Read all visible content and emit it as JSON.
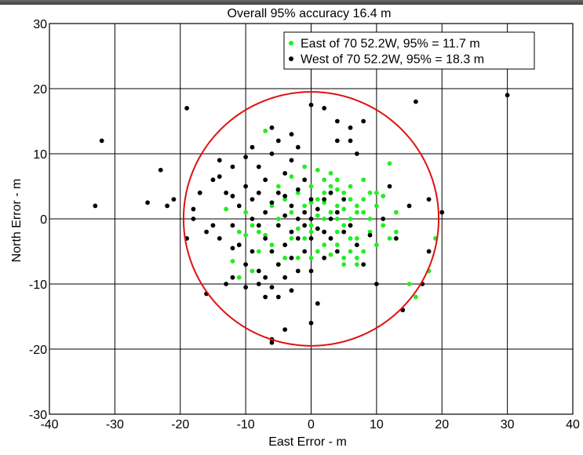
{
  "chart_data": {
    "type": "scatter",
    "title": "Overall 95% accuracy 16.4 m",
    "xlabel": "East Error - m",
    "ylabel": "North Error - m",
    "xlim": [
      -40,
      40
    ],
    "ylim": [
      -30,
      30
    ],
    "grid": true,
    "legend_position": "top-right",
    "x_ticks": [
      {
        "value": -40,
        "label": "-40",
        "color": "#000000"
      },
      {
        "value": -30,
        "label": "-30",
        "color": "#f7f720"
      },
      {
        "value": -20,
        "label": "-20",
        "color": "#000000"
      },
      {
        "value": -10,
        "label": "-10",
        "color": "#000000"
      },
      {
        "value": 0,
        "label": "0",
        "color": "#000000"
      },
      {
        "value": 10,
        "label": "10",
        "color": "#f7f720"
      },
      {
        "value": 20,
        "label": "20",
        "color": "#000000"
      },
      {
        "value": 30,
        "label": "30",
        "color": "#f7f720"
      },
      {
        "value": 40,
        "label": "40",
        "color": "#000000"
      }
    ],
    "y_ticks": [
      {
        "value": 30,
        "label": "30",
        "color": "#000000"
      },
      {
        "value": 20,
        "label": "20",
        "color": "#f7f720"
      },
      {
        "value": 10,
        "label": "10",
        "color": "#f7f720"
      },
      {
        "value": 0,
        "label": "0",
        "color": "#000000"
      },
      {
        "value": -10,
        "label": "-10",
        "color": "#000000"
      },
      {
        "value": -20,
        "label": "-20",
        "color": "#f7f720"
      },
      {
        "value": -30,
        "label": "-30",
        "color": "#000000"
      }
    ],
    "circle": {
      "center": [
        0,
        0
      ],
      "radius": 19.5,
      "color": "#e01010"
    },
    "series": [
      {
        "name": "East of 70 52.2W, 95% = 11.7 m",
        "color": "#22ee22",
        "points": [
          [
            -7,
            13.5
          ],
          [
            1,
            7.5
          ],
          [
            -13,
            1.5
          ],
          [
            -11,
            -2
          ],
          [
            -10,
            -2.5
          ],
          [
            -12,
            -6.5
          ],
          [
            -11,
            -9
          ],
          [
            -9,
            -8
          ],
          [
            -6,
            -4
          ],
          [
            -8,
            -2
          ],
          [
            -5,
            -7
          ],
          [
            -4,
            -6
          ],
          [
            -3,
            -3
          ],
          [
            -2,
            -1.5
          ],
          [
            -1,
            2
          ],
          [
            0,
            -1
          ],
          [
            1,
            0.5
          ],
          [
            2,
            2.5
          ],
          [
            3,
            5
          ],
          [
            4,
            6
          ],
          [
            5,
            4
          ],
          [
            6,
            3
          ],
          [
            7,
            2
          ],
          [
            8,
            1
          ],
          [
            9,
            0
          ],
          [
            10,
            4
          ],
          [
            11,
            -1
          ],
          [
            12,
            8.5
          ],
          [
            13,
            -2
          ],
          [
            15,
            -10
          ],
          [
            16,
            -12
          ],
          [
            18,
            -8
          ],
          [
            19,
            -3
          ],
          [
            2,
            -4
          ],
          [
            3,
            -3
          ],
          [
            4,
            -2
          ],
          [
            5,
            -1
          ],
          [
            6,
            0
          ],
          [
            7,
            -3
          ],
          [
            8,
            -5
          ],
          [
            5,
            -6
          ],
          [
            6,
            -5
          ],
          [
            3,
            7
          ],
          [
            4,
            4.5
          ],
          [
            2,
            6
          ],
          [
            -2,
            4
          ],
          [
            0,
            5
          ],
          [
            1,
            3
          ],
          [
            -3,
            1
          ],
          [
            -1,
            -3
          ],
          [
            3,
            1
          ],
          [
            4,
            0
          ],
          [
            5,
            1.5
          ],
          [
            6,
            -1
          ],
          [
            7,
            1
          ],
          [
            8,
            3
          ],
          [
            9,
            -2
          ],
          [
            10,
            -4
          ],
          [
            0,
            -2
          ],
          [
            2,
            0
          ],
          [
            4,
            -4
          ],
          [
            6,
            -3
          ],
          [
            7,
            -6
          ],
          [
            -4,
            3
          ],
          [
            -5,
            0
          ],
          [
            -6,
            2
          ],
          [
            -7,
            -2.5
          ],
          [
            -8,
            -5
          ],
          [
            -9,
            -1
          ],
          [
            -10,
            1
          ],
          [
            1,
            -5
          ],
          [
            3,
            -5.5
          ],
          [
            5,
            -7
          ],
          [
            7,
            -7
          ],
          [
            9,
            4
          ],
          [
            10,
            2
          ],
          [
            11,
            3.5
          ],
          [
            12,
            -3
          ],
          [
            13,
            1
          ],
          [
            -2,
            -6
          ],
          [
            0,
            2.5
          ],
          [
            2,
            4
          ],
          [
            4,
            2
          ],
          [
            6,
            5
          ],
          [
            8,
            6
          ],
          [
            -5,
            5
          ],
          [
            -3,
            6.5
          ],
          [
            -1,
            8
          ],
          [
            0,
            -6
          ],
          [
            2,
            -2
          ]
        ]
      },
      {
        "name": "West of 70 52.2W, 95% = 18.3 m",
        "color": "#000000",
        "points": [
          [
            -33,
            2
          ],
          [
            -32,
            12
          ],
          [
            -25,
            2.5
          ],
          [
            -23,
            7.5
          ],
          [
            -22,
            2
          ],
          [
            -21,
            3
          ],
          [
            -19,
            -3
          ],
          [
            -19,
            17
          ],
          [
            -18,
            0
          ],
          [
            -18,
            1.5
          ],
          [
            -17,
            4
          ],
          [
            -16,
            -2
          ],
          [
            -16,
            -11.5
          ],
          [
            -15,
            6
          ],
          [
            -14,
            9
          ],
          [
            -13,
            4
          ],
          [
            -13,
            -10
          ],
          [
            -12,
            -1
          ],
          [
            -12,
            -4.5
          ],
          [
            -12,
            3.5
          ],
          [
            -11,
            -4
          ],
          [
            -11,
            2
          ],
          [
            -10,
            5
          ],
          [
            -10,
            -7
          ],
          [
            -10,
            9.5
          ],
          [
            -9,
            -5
          ],
          [
            -9,
            0
          ],
          [
            -9,
            3
          ],
          [
            -8,
            8
          ],
          [
            -8,
            -8
          ],
          [
            -8,
            -1
          ],
          [
            -8,
            4
          ],
          [
            -7,
            6
          ],
          [
            -7,
            -3
          ],
          [
            -7,
            -9
          ],
          [
            -7,
            1
          ],
          [
            -6,
            -5
          ],
          [
            -6,
            2.5
          ],
          [
            -6,
            -10.5
          ],
          [
            -6,
            10
          ],
          [
            -5,
            -1
          ],
          [
            -5,
            4
          ],
          [
            -5,
            -7
          ],
          [
            -5,
            12
          ],
          [
            -4,
            0.5
          ],
          [
            -4,
            -4
          ],
          [
            -4,
            7
          ],
          [
            -4,
            -17
          ],
          [
            -3,
            2
          ],
          [
            -3,
            -2
          ],
          [
            -3,
            -6
          ],
          [
            -3,
            9
          ],
          [
            -2,
            0
          ],
          [
            -2,
            -3
          ],
          [
            -2,
            4.5
          ],
          [
            -2,
            -8
          ],
          [
            -1,
            1
          ],
          [
            -1,
            -1
          ],
          [
            -1,
            6
          ],
          [
            -1,
            -5
          ],
          [
            0,
            0
          ],
          [
            0,
            3
          ],
          [
            0,
            -3
          ],
          [
            0,
            17.5
          ],
          [
            0,
            -8
          ],
          [
            1,
            1.5
          ],
          [
            1,
            -1.5
          ],
          [
            1,
            -13
          ],
          [
            2,
            3
          ],
          [
            2,
            -2
          ],
          [
            2,
            -6
          ],
          [
            3,
            0
          ],
          [
            3,
            4
          ],
          [
            3,
            -3
          ],
          [
            4,
            1
          ],
          [
            4,
            -5
          ],
          [
            4,
            12
          ],
          [
            5,
            -2
          ],
          [
            5,
            3
          ],
          [
            6,
            14
          ],
          [
            6,
            -1
          ],
          [
            7,
            -4
          ],
          [
            7,
            10
          ],
          [
            8,
            15
          ],
          [
            8,
            -7
          ],
          [
            9,
            -2.5
          ],
          [
            10,
            -10
          ],
          [
            11,
            0
          ],
          [
            12,
            5
          ],
          [
            13,
            -3
          ],
          [
            14,
            -14
          ],
          [
            15,
            2
          ],
          [
            16,
            18
          ],
          [
            17,
            -10
          ],
          [
            18,
            3
          ],
          [
            18,
            -5
          ],
          [
            20,
            1
          ],
          [
            30,
            19
          ],
          [
            -6,
            -19
          ],
          [
            -6,
            -18.5
          ],
          [
            -5,
            -12
          ],
          [
            -7,
            -12
          ],
          [
            -8,
            -10
          ],
          [
            0,
            -16
          ],
          [
            -10,
            -10.5
          ],
          [
            -12,
            -9
          ],
          [
            -14,
            -3
          ],
          [
            -15,
            -1
          ],
          [
            -4,
            -9
          ],
          [
            -3,
            -11
          ],
          [
            -2,
            11
          ],
          [
            -3,
            13
          ],
          [
            -6,
            14
          ],
          [
            -9,
            11
          ],
          [
            -12,
            8
          ],
          [
            -14,
            6.5
          ],
          [
            4,
            15
          ],
          [
            6,
            12
          ],
          [
            2,
            17
          ],
          [
            -4,
            3.5
          ]
        ]
      }
    ]
  }
}
